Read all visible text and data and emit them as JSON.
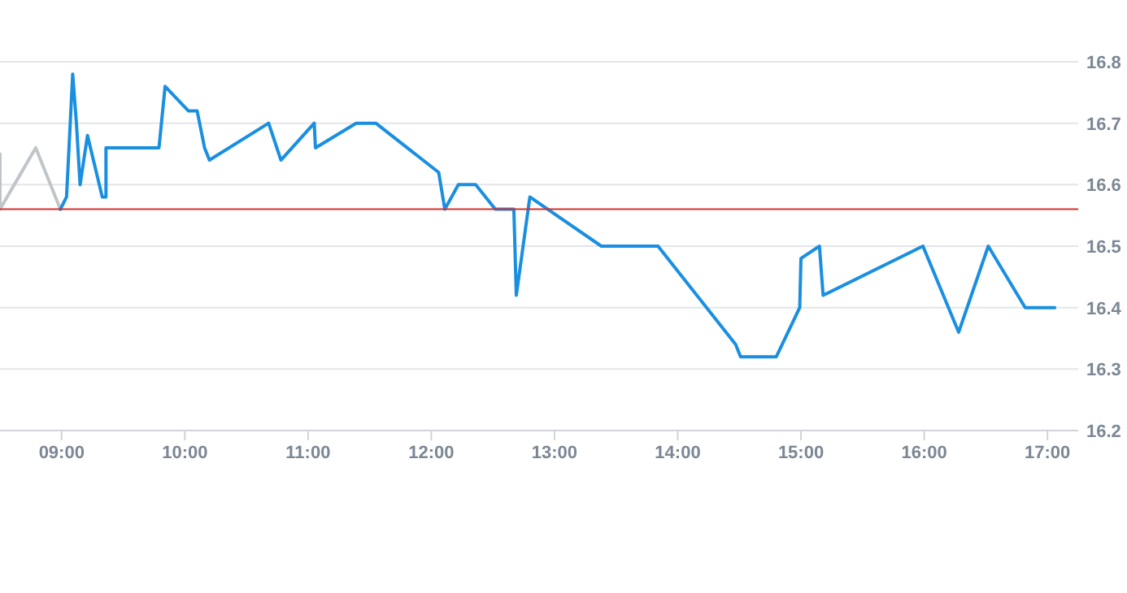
{
  "chart_data": {
    "type": "line",
    "xlim": [
      8.5,
      17.25
    ],
    "ylim": [
      16.2,
      16.8
    ],
    "xticks": [
      {
        "value": 9,
        "label": "09:00"
      },
      {
        "value": 10,
        "label": "10:00"
      },
      {
        "value": 11,
        "label": "11:00"
      },
      {
        "value": 12,
        "label": "12:00"
      },
      {
        "value": 13,
        "label": "13:00"
      },
      {
        "value": 14,
        "label": "14:00"
      },
      {
        "value": 15,
        "label": "15:00"
      },
      {
        "value": 16,
        "label": "16:00"
      },
      {
        "value": 17,
        "label": "17:00"
      }
    ],
    "yticks": [
      16.2,
      16.3,
      16.4,
      16.5,
      16.6,
      16.7,
      16.8
    ],
    "grid": "y",
    "marker": "none",
    "line_style": "solid",
    "ref_lines": [
      {
        "axis": "y",
        "value": 16.56,
        "color": "#d0312d"
      }
    ],
    "series": [
      {
        "color": "#c0c5ca",
        "x": [
          8.5,
          8.5,
          8.79,
          8.99
        ],
        "values": [
          16.65,
          16.56,
          16.66,
          16.56
        ]
      },
      {
        "color": "#1a8fe0",
        "x": [
          8.99,
          9.04,
          9.09,
          9.12,
          9.15,
          9.21,
          9.33,
          9.36,
          9.36,
          9.79,
          9.84,
          10.03,
          10.1,
          10.16,
          10.2,
          10.68,
          10.78,
          11.05,
          11.06,
          11.39,
          11.55,
          12.06,
          12.11,
          12.22,
          12.36,
          12.52,
          12.67,
          12.69,
          12.8,
          13.38,
          13.84,
          14.47,
          14.51,
          14.8,
          14.99,
          15.0,
          15.15,
          15.18,
          15.99,
          16.28,
          16.52,
          16.82,
          17.06
        ],
        "values": [
          16.56,
          16.58,
          16.78,
          16.7,
          16.6,
          16.68,
          16.58,
          16.58,
          16.66,
          16.66,
          16.76,
          16.72,
          16.72,
          16.66,
          16.64,
          16.7,
          16.64,
          16.7,
          16.66,
          16.7,
          16.7,
          16.62,
          16.56,
          16.6,
          16.6,
          16.56,
          16.56,
          16.42,
          16.58,
          16.5,
          16.5,
          16.34,
          16.32,
          16.32,
          16.4,
          16.48,
          16.5,
          16.42,
          16.5,
          16.36,
          16.5,
          16.4,
          16.4
        ]
      }
    ]
  }
}
